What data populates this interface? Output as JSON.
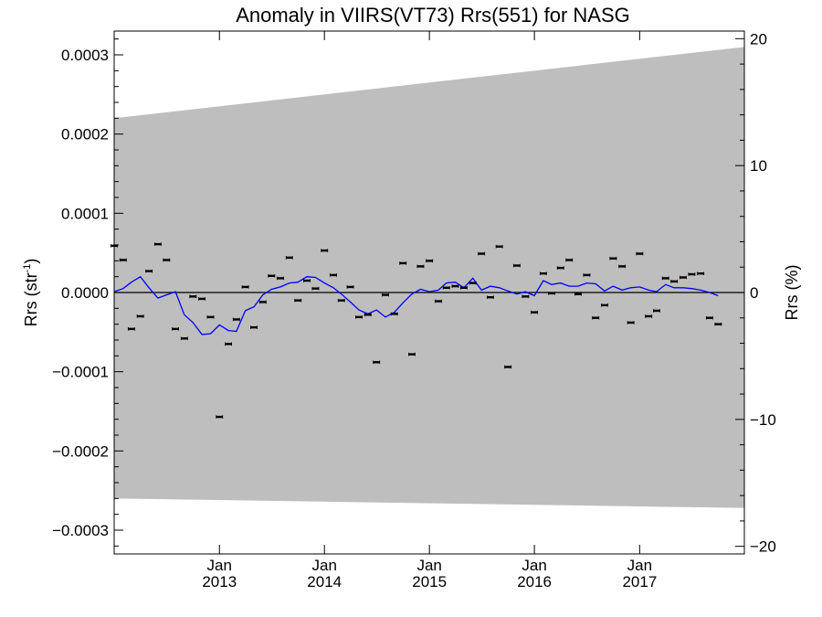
{
  "chart_data": {
    "type": "scatter",
    "title": "Anomaly in VIIRS(VT73) Rrs(551) for NASG",
    "ylabel_left": "Rrs (str",
    "ylabel_left_sup": "-1",
    "ylabel_left_close": ")",
    "ylabel_right": "Rrs (%)",
    "x_range": [
      "2012-01-01",
      "2017-12-31"
    ],
    "y_range_left": [
      -0.00033,
      0.00033
    ],
    "y_range_right": [
      -20.6,
      20.6
    ],
    "y_ticks_left": [
      {
        "value": 0.0003,
        "label": "0.0003"
      },
      {
        "value": 0.0002,
        "label": "0.0002"
      },
      {
        "value": 0.0001,
        "label": "0.0001"
      },
      {
        "value": 0.0,
        "label": "0.0000"
      },
      {
        "value": -0.0001,
        "label": "−0.0001"
      },
      {
        "value": -0.0002,
        "label": "−0.0002"
      },
      {
        "value": -0.0003,
        "label": "−0.0003"
      }
    ],
    "y_ticks_right": [
      {
        "value": 20,
        "label": "20"
      },
      {
        "value": 10,
        "label": "10"
      },
      {
        "value": 0,
        "label": "0"
      },
      {
        "value": -10,
        "label": "−10"
      },
      {
        "value": -20,
        "label": "−20"
      }
    ],
    "x_ticks": [
      {
        "date": "2013-01-01",
        "month": "Jan",
        "year": "2013"
      },
      {
        "date": "2014-01-01",
        "month": "Jan",
        "year": "2014"
      },
      {
        "date": "2015-01-01",
        "month": "Jan",
        "year": "2015"
      },
      {
        "date": "2016-01-01",
        "month": "Jan",
        "year": "2016"
      },
      {
        "date": "2017-01-01",
        "month": "Jan",
        "year": "2017"
      }
    ],
    "uncertainty_band": {
      "upper": [
        [
          "2012-01-01",
          0.00022
        ],
        [
          "2017-12-31",
          0.00031
        ]
      ],
      "lower": [
        [
          "2012-01-01",
          -0.00026
        ],
        [
          "2017-12-31",
          -0.000272
        ]
      ]
    },
    "zero_line": 0.0,
    "points": [
      [
        "2012-01-01",
        5.9e-05
      ],
      [
        "2012-02-01",
        4.1e-05
      ],
      [
        "2012-03-01",
        -4.6e-05
      ],
      [
        "2012-04-01",
        -3e-05
      ],
      [
        "2012-05-01",
        2.7e-05
      ],
      [
        "2012-06-01",
        6.1e-05
      ],
      [
        "2012-07-01",
        4.1e-05
      ],
      [
        "2012-08-01",
        -4.6e-05
      ],
      [
        "2012-09-01",
        -5.8e-05
      ],
      [
        "2012-10-01",
        -5e-06
      ],
      [
        "2012-11-01",
        -8e-06
      ],
      [
        "2012-12-01",
        -3.1e-05
      ],
      [
        "2013-01-01",
        -0.000157
      ],
      [
        "2013-02-01",
        -6.5e-05
      ],
      [
        "2013-03-01",
        -3.4e-05
      ],
      [
        "2013-04-01",
        7e-06
      ],
      [
        "2013-05-01",
        -4.4e-05
      ],
      [
        "2013-06-01",
        -1.2e-05
      ],
      [
        "2013-07-01",
        2.1e-05
      ],
      [
        "2013-08-01",
        1.8e-05
      ],
      [
        "2013-09-01",
        4.4e-05
      ],
      [
        "2013-10-01",
        -1e-05
      ],
      [
        "2013-11-01",
        1.5e-05
      ],
      [
        "2013-12-01",
        5e-06
      ],
      [
        "2014-01-01",
        5.3e-05
      ],
      [
        "2014-02-01",
        2.2e-05
      ],
      [
        "2014-03-01",
        -1e-05
      ],
      [
        "2014-04-01",
        7e-06
      ],
      [
        "2014-05-01",
        -3.1e-05
      ],
      [
        "2014-06-01",
        -2.8e-05
      ],
      [
        "2014-07-01",
        -8.8e-05
      ],
      [
        "2014-08-01",
        -3e-06
      ],
      [
        "2014-09-01",
        -2.7e-05
      ],
      [
        "2014-10-01",
        3.7e-05
      ],
      [
        "2014-11-01",
        -7.8e-05
      ],
      [
        "2014-12-01",
        3.3e-05
      ],
      [
        "2015-01-01",
        4e-05
      ],
      [
        "2015-02-01",
        -1.1e-05
      ],
      [
        "2015-03-01",
        6e-06
      ],
      [
        "2015-04-01",
        8e-06
      ],
      [
        "2015-05-01",
        6e-06
      ],
      [
        "2015-06-01",
        1.2e-05
      ],
      [
        "2015-07-01",
        4.9e-05
      ],
      [
        "2015-08-01",
        -6e-06
      ],
      [
        "2015-09-01",
        5.8e-05
      ],
      [
        "2015-10-01",
        -9.4e-05
      ],
      [
        "2015-11-01",
        3.4e-05
      ],
      [
        "2015-12-01",
        -5e-06
      ],
      [
        "2016-01-01",
        -2.5e-05
      ],
      [
        "2016-02-01",
        2.4e-05
      ],
      [
        "2016-03-01",
        -1e-06
      ],
      [
        "2016-04-01",
        3.1e-05
      ],
      [
        "2016-05-01",
        4.1e-05
      ],
      [
        "2016-06-01",
        -2e-06
      ],
      [
        "2016-07-01",
        2.2e-05
      ],
      [
        "2016-08-01",
        -3.2e-05
      ],
      [
        "2016-09-01",
        -1.6e-05
      ],
      [
        "2016-10-01",
        4.3e-05
      ],
      [
        "2016-11-01",
        3.3e-05
      ],
      [
        "2016-12-01",
        -3.8e-05
      ],
      [
        "2017-01-01",
        4.9e-05
      ],
      [
        "2017-02-01",
        -3e-05
      ],
      [
        "2017-03-01",
        -2.3e-05
      ],
      [
        "2017-04-01",
        1.8e-05
      ],
      [
        "2017-05-01",
        1.4e-05
      ],
      [
        "2017-06-01",
        1.9e-05
      ],
      [
        "2017-07-01",
        2.3e-05
      ],
      [
        "2017-08-01",
        2.4e-05
      ],
      [
        "2017-09-01",
        -3.2e-05
      ],
      [
        "2017-10-01",
        -4e-05
      ]
    ],
    "running_mean": {
      "color": "#0000ff",
      "points": [
        [
          "2012-01-01",
          1e-06
        ],
        [
          "2012-02-01",
          5e-06
        ],
        [
          "2012-03-01",
          1.3e-05
        ],
        [
          "2012-04-01",
          2e-05
        ],
        [
          "2012-05-01",
          6e-06
        ],
        [
          "2012-06-01",
          -7e-06
        ],
        [
          "2012-07-01",
          -3e-06
        ],
        [
          "2012-08-01",
          1e-06
        ],
        [
          "2012-09-01",
          -2.8e-05
        ],
        [
          "2012-10-01",
          -3.8e-05
        ],
        [
          "2012-11-01",
          -5.3e-05
        ],
        [
          "2012-12-01",
          -5.2e-05
        ],
        [
          "2013-01-01",
          -4.1e-05
        ],
        [
          "2013-02-01",
          -4.8e-05
        ],
        [
          "2013-03-01",
          -4.9e-05
        ],
        [
          "2013-04-01",
          -2.3e-05
        ],
        [
          "2013-05-01",
          -1.8e-05
        ],
        [
          "2013-06-01",
          -3e-06
        ],
        [
          "2013-07-01",
          4e-06
        ],
        [
          "2013-08-01",
          7e-06
        ],
        [
          "2013-09-01",
          1.2e-05
        ],
        [
          "2013-10-01",
          1.3e-05
        ],
        [
          "2013-11-01",
          2e-05
        ],
        [
          "2013-12-01",
          1.9e-05
        ],
        [
          "2014-01-01",
          1.2e-05
        ],
        [
          "2014-02-01",
          6e-06
        ],
        [
          "2014-03-01",
          -2e-06
        ],
        [
          "2014-04-01",
          -1.2e-05
        ],
        [
          "2014-05-01",
          -2.2e-05
        ],
        [
          "2014-06-01",
          -2.7e-05
        ],
        [
          "2014-07-01",
          -2.2e-05
        ],
        [
          "2014-08-01",
          -3.1e-05
        ],
        [
          "2014-09-01",
          -2.5e-05
        ],
        [
          "2014-10-01",
          -1.3e-05
        ],
        [
          "2014-11-01",
          -2e-06
        ],
        [
          "2014-12-01",
          4e-06
        ],
        [
          "2015-01-01",
          1e-06
        ],
        [
          "2015-02-01",
          3e-06
        ],
        [
          "2015-03-01",
          1.2e-05
        ],
        [
          "2015-04-01",
          1.3e-05
        ],
        [
          "2015-05-01",
          6e-06
        ],
        [
          "2015-06-01",
          1.8e-05
        ],
        [
          "2015-07-01",
          3e-06
        ],
        [
          "2015-08-01",
          8e-06
        ],
        [
          "2015-09-01",
          6e-06
        ],
        [
          "2015-10-01",
          2e-06
        ],
        [
          "2015-11-01",
          -2e-06
        ],
        [
          "2015-12-01",
          1e-06
        ],
        [
          "2016-01-01",
          -4e-06
        ],
        [
          "2016-02-01",
          1.5e-05
        ],
        [
          "2016-03-01",
          1e-05
        ],
        [
          "2016-04-01",
          1.2e-05
        ],
        [
          "2016-05-01",
          8e-06
        ],
        [
          "2016-06-01",
          8e-06
        ],
        [
          "2016-07-01",
          1.2e-05
        ],
        [
          "2016-08-01",
          1.1e-05
        ],
        [
          "2016-09-01",
          2e-06
        ],
        [
          "2016-10-01",
          8e-06
        ],
        [
          "2016-11-01",
          3e-06
        ],
        [
          "2016-12-01",
          6e-06
        ],
        [
          "2017-01-01",
          7e-06
        ],
        [
          "2017-02-01",
          3e-06
        ],
        [
          "2017-03-01",
          1e-06
        ],
        [
          "2017-04-01",
          1e-05
        ],
        [
          "2017-05-01",
          6e-06
        ],
        [
          "2017-06-01",
          6e-06
        ],
        [
          "2017-07-01",
          5e-06
        ],
        [
          "2017-08-01",
          3e-06
        ],
        [
          "2017-09-01",
          0.0
        ],
        [
          "2017-10-01",
          -4e-06
        ]
      ]
    },
    "band_color": "#bebebe",
    "grid": false
  }
}
